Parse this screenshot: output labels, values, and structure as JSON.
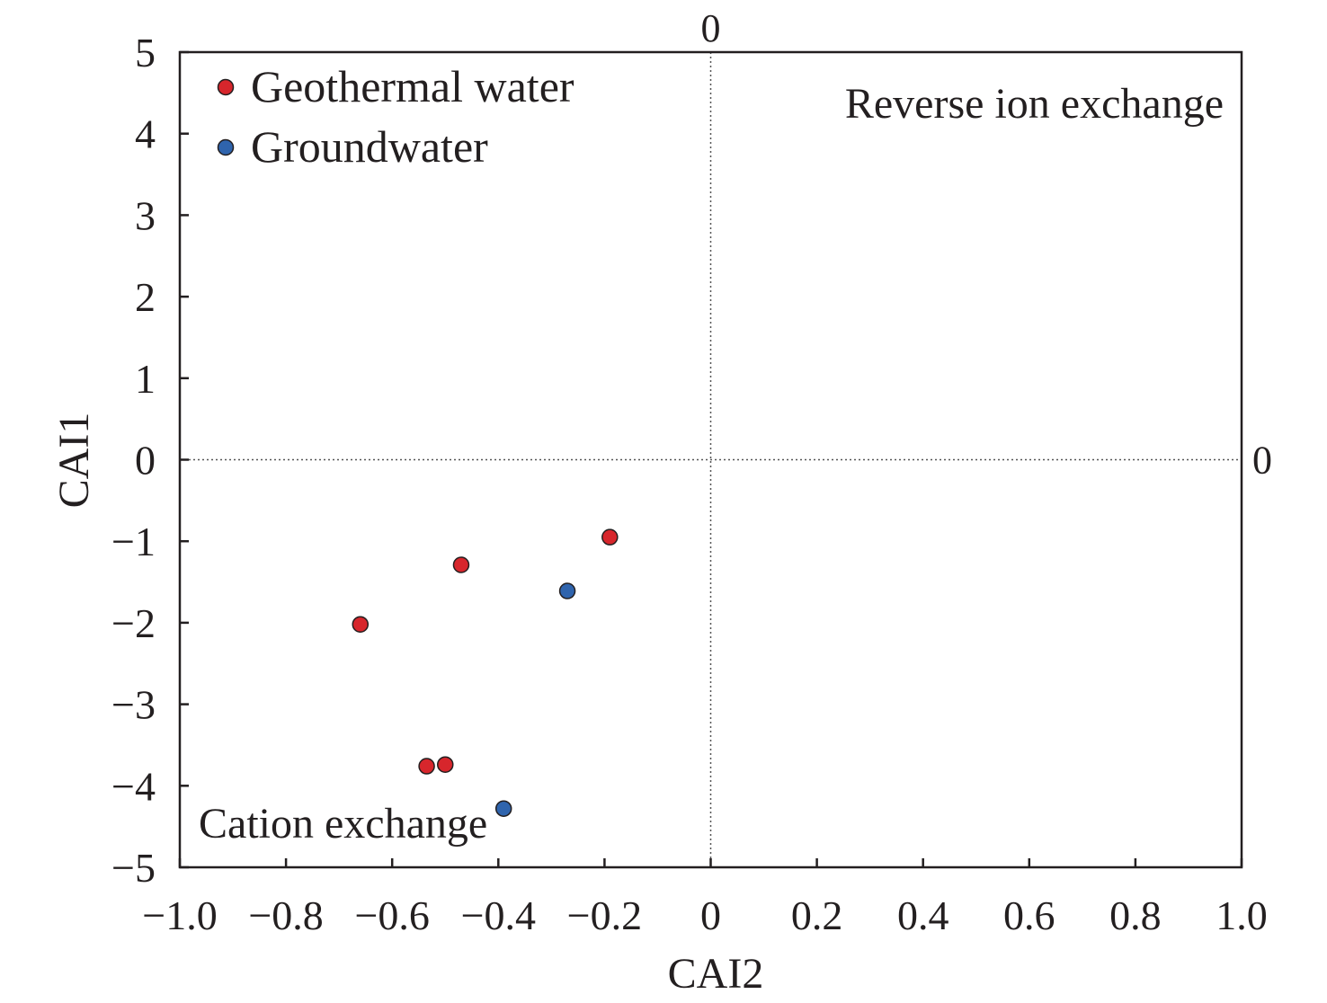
{
  "colors": {
    "geothermal": "#d7262c",
    "groundwater": "#2f64ad",
    "axis": "#231f20"
  },
  "chart_data": {
    "type": "scatter",
    "xlabel": "CAI2",
    "ylabel": "CAI1",
    "xlim": [
      -1.0,
      1.0
    ],
    "ylim": [
      -5,
      5
    ],
    "grid": false,
    "legend_position": "top-left",
    "x_ticks": [
      "−1.0",
      "−0.8",
      "−0.6",
      "−0.4",
      "−0.2",
      "0",
      "0.2",
      "0.4",
      "0.6",
      "0.8",
      "1.0"
    ],
    "y_ticks": [
      "−5",
      "−4",
      "−3",
      "−2",
      "−1",
      "0",
      "1",
      "2",
      "3",
      "4",
      "5"
    ],
    "reference_lines": [
      {
        "axis": "x",
        "value": 0,
        "label": "0"
      },
      {
        "axis": "y",
        "value": 0,
        "label": "0"
      }
    ],
    "annotations": [
      {
        "text": "Reverse ion exchange",
        "region": "top-right"
      },
      {
        "text": "Cation exchange",
        "region": "bottom-left"
      }
    ],
    "series": [
      {
        "name": "Geothermal water",
        "color": "#d7262c",
        "points": [
          {
            "x": -0.66,
            "y": -2.02
          },
          {
            "x": -0.47,
            "y": -1.29
          },
          {
            "x": -0.19,
            "y": -0.95
          },
          {
            "x": -0.535,
            "y": -3.76
          },
          {
            "x": -0.5,
            "y": -3.74
          }
        ]
      },
      {
        "name": "Groundwater",
        "color": "#2f64ad",
        "points": [
          {
            "x": -0.27,
            "y": -1.61
          },
          {
            "x": -0.39,
            "y": -4.28
          }
        ]
      }
    ]
  }
}
